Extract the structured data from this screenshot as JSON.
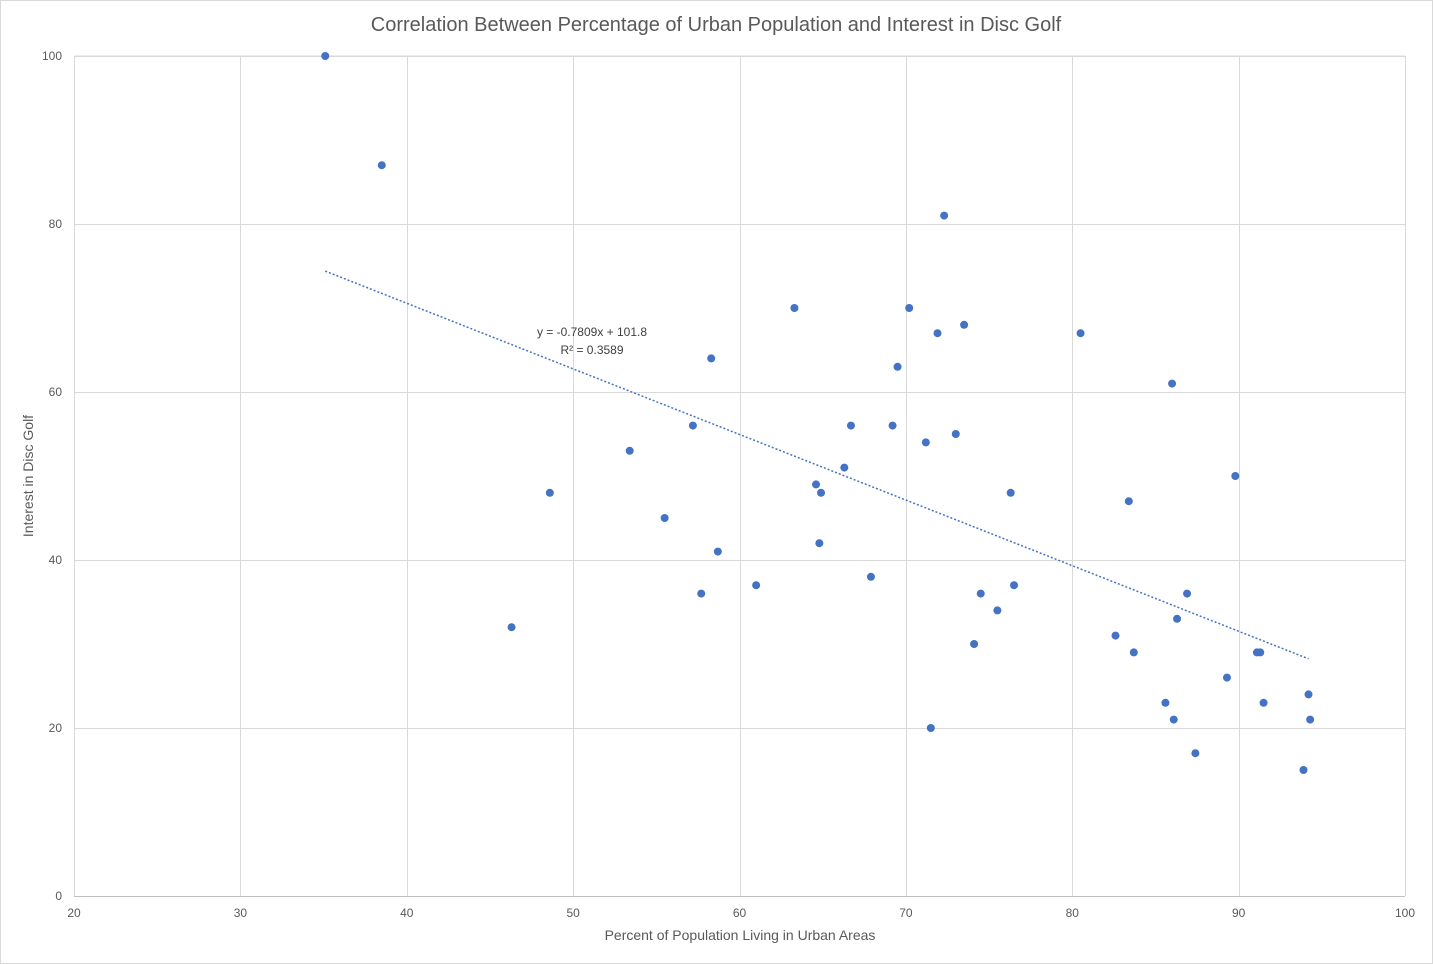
{
  "chart_data": {
    "type": "scatter",
    "title": "Correlation Between Percentage of Urban Population and Interest in Disc Golf",
    "xlabel": "Percent of Population Living in Urban Areas",
    "ylabel": "Interest in Disc Golf",
    "xlim": [
      20,
      100
    ],
    "ylim": [
      0,
      100
    ],
    "xticks": [
      20,
      30,
      40,
      50,
      60,
      70,
      80,
      90,
      100
    ],
    "yticks": [
      0,
      20,
      40,
      60,
      80,
      100
    ],
    "grid": true,
    "point_color": "#4472c4",
    "trendline": {
      "slope": -0.7809,
      "intercept": 101.8,
      "x_range": [
        35.1,
        94.2
      ],
      "equation_label": "y = -0.7809x + 101.8",
      "r2_label": "R² = 0.3589",
      "color": "#4472c4"
    },
    "points": [
      {
        "x": 35.1,
        "y": 100
      },
      {
        "x": 38.5,
        "y": 87
      },
      {
        "x": 46.3,
        "y": 32
      },
      {
        "x": 48.6,
        "y": 48
      },
      {
        "x": 53.4,
        "y": 53
      },
      {
        "x": 55.5,
        "y": 45
      },
      {
        "x": 57.2,
        "y": 56
      },
      {
        "x": 57.7,
        "y": 36
      },
      {
        "x": 58.3,
        "y": 64
      },
      {
        "x": 58.7,
        "y": 41
      },
      {
        "x": 61.0,
        "y": 37
      },
      {
        "x": 63.3,
        "y": 70
      },
      {
        "x": 64.6,
        "y": 49
      },
      {
        "x": 64.8,
        "y": 42
      },
      {
        "x": 64.9,
        "y": 48
      },
      {
        "x": 66.3,
        "y": 51
      },
      {
        "x": 66.7,
        "y": 56
      },
      {
        "x": 67.9,
        "y": 38
      },
      {
        "x": 69.2,
        "y": 56
      },
      {
        "x": 69.5,
        "y": 63
      },
      {
        "x": 70.2,
        "y": 70
      },
      {
        "x": 71.2,
        "y": 54
      },
      {
        "x": 71.5,
        "y": 20
      },
      {
        "x": 71.9,
        "y": 67
      },
      {
        "x": 72.3,
        "y": 81
      },
      {
        "x": 73.0,
        "y": 55
      },
      {
        "x": 73.5,
        "y": 68
      },
      {
        "x": 74.1,
        "y": 30
      },
      {
        "x": 74.5,
        "y": 36
      },
      {
        "x": 75.5,
        "y": 34
      },
      {
        "x": 76.3,
        "y": 48
      },
      {
        "x": 76.5,
        "y": 37
      },
      {
        "x": 80.5,
        "y": 67
      },
      {
        "x": 82.6,
        "y": 31
      },
      {
        "x": 83.4,
        "y": 47
      },
      {
        "x": 83.7,
        "y": 29
      },
      {
        "x": 85.6,
        "y": 23
      },
      {
        "x": 86.0,
        "y": 61
      },
      {
        "x": 86.1,
        "y": 21
      },
      {
        "x": 86.3,
        "y": 33
      },
      {
        "x": 86.9,
        "y": 36
      },
      {
        "x": 87.4,
        "y": 17
      },
      {
        "x": 89.3,
        "y": 26
      },
      {
        "x": 89.8,
        "y": 50
      },
      {
        "x": 91.1,
        "y": 29
      },
      {
        "x": 91.3,
        "y": 29
      },
      {
        "x": 91.5,
        "y": 23
      },
      {
        "x": 93.9,
        "y": 15
      },
      {
        "x": 94.2,
        "y": 24
      },
      {
        "x": 94.3,
        "y": 21
      }
    ]
  }
}
